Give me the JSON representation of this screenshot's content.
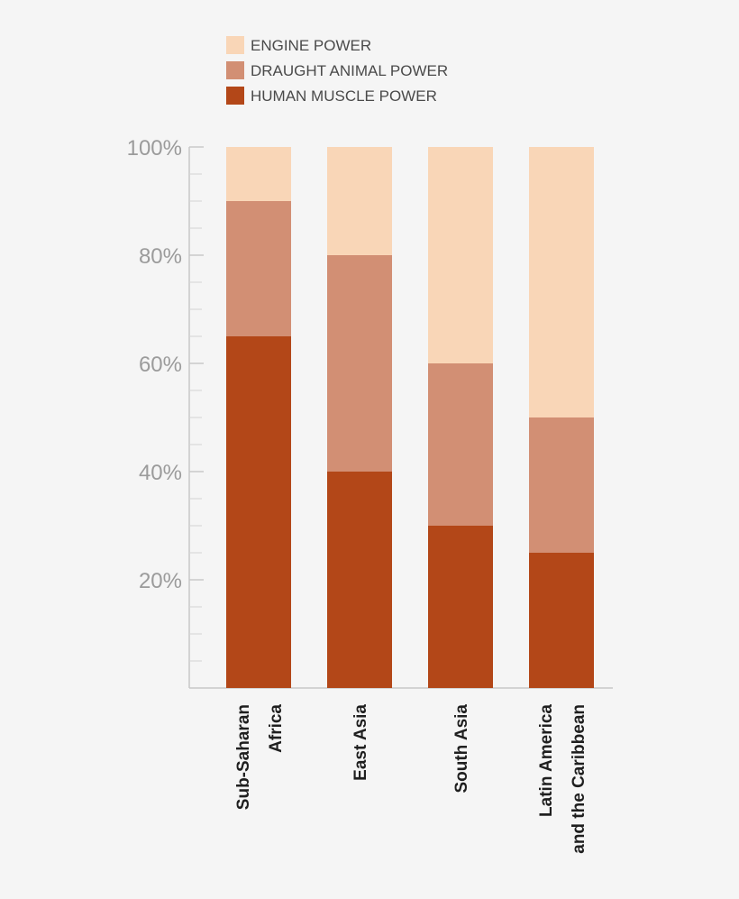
{
  "chart_data": {
    "type": "bar",
    "stacked": true,
    "percent": true,
    "categories": [
      [
        "Sub-Saharan",
        "Africa"
      ],
      [
        "East Asia"
      ],
      [
        "South Asia"
      ],
      [
        "Latin America",
        "and the Caribbean"
      ]
    ],
    "series": [
      {
        "name": "HUMAN MUSCLE POWER",
        "color": "#b34718",
        "values": [
          65,
          40,
          30,
          25
        ]
      },
      {
        "name": "DRAUGHT ANIMAL POWER",
        "color": "#d28f74",
        "values": [
          25,
          40,
          30,
          25
        ]
      },
      {
        "name": "ENGINE POWER",
        "color": "#f9d6b7",
        "values": [
          10,
          20,
          40,
          50
        ]
      }
    ],
    "legend_order": [
      "ENGINE POWER",
      "DRAUGHT ANIMAL POWER",
      "HUMAN MUSCLE POWER"
    ],
    "legend_position": "top",
    "ylim": [
      0,
      100
    ],
    "yticks": [
      20,
      40,
      60,
      80,
      100
    ],
    "ytick_labels": [
      "20%",
      "40%",
      "60%",
      "80%",
      "100%"
    ],
    "grid": false,
    "xlabel": "",
    "ylabel": "",
    "title": ""
  }
}
